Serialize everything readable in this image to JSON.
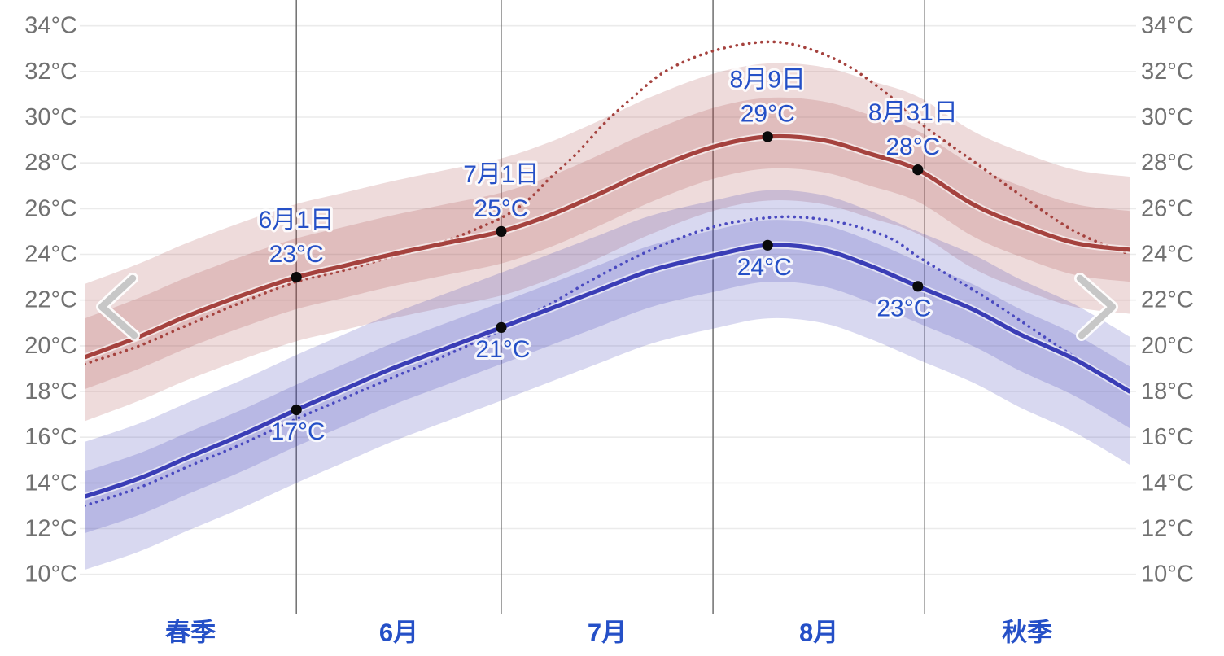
{
  "chart": {
    "background": "#ffffff",
    "nav": {
      "prev_label": "previous period",
      "next_label": "next period"
    }
  },
  "chart_data": {
    "type": "line",
    "title": "",
    "y_axis": {
      "unit": "°C",
      "min": 10,
      "max": 34,
      "step": 2,
      "tick_labels": [
        "34°C",
        "32°C",
        "30°C",
        "28°C",
        "26°C",
        "24°C",
        "22°C",
        "20°C",
        "18°C",
        "16°C",
        "14°C",
        "12°C",
        "10°C"
      ],
      "sides": "both",
      "label_color": "#717171"
    },
    "x_axis": {
      "visible_range_days": 153,
      "month_gridline_days": [
        31,
        61,
        92,
        123
      ],
      "labels": [
        {
          "text": "春季",
          "center_day": 15.5
        },
        {
          "text": "6月",
          "center_day": 46
        },
        {
          "text": "7月",
          "center_day": 76.5
        },
        {
          "text": "8月",
          "center_day": 107.5
        },
        {
          "text": "秋季",
          "center_day": 138
        }
      ],
      "label_color": "#2550c7"
    },
    "grid": {
      "h_color": "#ebebeb",
      "v_color": "#6f6f6f"
    },
    "nav_chevron_color": "#c7c7c7",
    "annotation_color": "#2550c7",
    "point_color": "#0a0a0a",
    "series": [
      {
        "id": "high-temperature-mean",
        "style": "solid",
        "color": "#a5423e",
        "points_day_c": [
          [
            0,
            19.5
          ],
          [
            8,
            20.4
          ],
          [
            15,
            21.3
          ],
          [
            23,
            22.2
          ],
          [
            31,
            23.0
          ],
          [
            38,
            23.5
          ],
          [
            45,
            24.0
          ],
          [
            53,
            24.5
          ],
          [
            61,
            25.0
          ],
          [
            68,
            25.7
          ],
          [
            75,
            26.6
          ],
          [
            83,
            27.7
          ],
          [
            92,
            28.7
          ],
          [
            100,
            29.15
          ],
          [
            108,
            29.0
          ],
          [
            115,
            28.4
          ],
          [
            122,
            27.7
          ],
          [
            130,
            26.2
          ],
          [
            137,
            25.3
          ],
          [
            145,
            24.5
          ],
          [
            153,
            24.2
          ]
        ]
      },
      {
        "id": "high-temperature-perceived",
        "style": "dotted",
        "color": "#a5423e",
        "points_day_c": [
          [
            0,
            19.2
          ],
          [
            8,
            20.0
          ],
          [
            15,
            20.9
          ],
          [
            23,
            21.9
          ],
          [
            31,
            22.8
          ],
          [
            38,
            23.3
          ],
          [
            45,
            23.9
          ],
          [
            53,
            24.6
          ],
          [
            61,
            25.6
          ],
          [
            65,
            26.4
          ],
          [
            68,
            27.3
          ],
          [
            72,
            28.4
          ],
          [
            76,
            29.7
          ],
          [
            80,
            30.8
          ],
          [
            85,
            32.0
          ],
          [
            92,
            32.9
          ],
          [
            100,
            33.3
          ],
          [
            106,
            33.0
          ],
          [
            112,
            32.2
          ],
          [
            118,
            30.9
          ],
          [
            123,
            29.6
          ],
          [
            130,
            28.1
          ],
          [
            137,
            26.6
          ],
          [
            145,
            25.0
          ],
          [
            153,
            24.0
          ]
        ]
      },
      {
        "id": "low-temperature-mean",
        "style": "solid",
        "color": "#3a3db6",
        "points_day_c": [
          [
            0,
            13.4
          ],
          [
            8,
            14.2
          ],
          [
            15,
            15.1
          ],
          [
            23,
            16.1
          ],
          [
            31,
            17.2
          ],
          [
            38,
            18.1
          ],
          [
            45,
            19.0
          ],
          [
            53,
            19.9
          ],
          [
            61,
            20.8
          ],
          [
            68,
            21.6
          ],
          [
            75,
            22.4
          ],
          [
            83,
            23.3
          ],
          [
            92,
            23.95
          ],
          [
            100,
            24.4
          ],
          [
            108,
            24.2
          ],
          [
            115,
            23.5
          ],
          [
            122,
            22.6
          ],
          [
            130,
            21.6
          ],
          [
            137,
            20.5
          ],
          [
            145,
            19.4
          ],
          [
            153,
            18.0
          ]
        ]
      },
      {
        "id": "low-temperature-perceived",
        "style": "dotted",
        "color": "#4a4ac0",
        "points_day_c": [
          [
            0,
            13.0
          ],
          [
            8,
            13.8
          ],
          [
            15,
            14.7
          ],
          [
            23,
            15.7
          ],
          [
            31,
            16.8
          ],
          [
            38,
            17.7
          ],
          [
            45,
            18.6
          ],
          [
            53,
            19.6
          ],
          [
            61,
            20.7
          ],
          [
            68,
            21.8
          ],
          [
            75,
            23.0
          ],
          [
            83,
            24.2
          ],
          [
            92,
            25.2
          ],
          [
            100,
            25.6
          ],
          [
            106,
            25.6
          ],
          [
            112,
            25.3
          ],
          [
            118,
            24.7
          ],
          [
            122,
            23.9
          ],
          [
            127,
            23.0
          ],
          [
            132,
            22.1
          ],
          [
            137,
            21.1
          ],
          [
            145,
            19.5
          ],
          [
            153,
            18.0
          ]
        ]
      }
    ],
    "bands": [
      {
        "base": "high-temperature-mean",
        "color": "#a5423e",
        "alpha": 0.19,
        "inner_offset_c": [
          1.7,
          -1.4
        ],
        "outer_offset_c": [
          3.2,
          -2.8
        ]
      },
      {
        "base": "low-temperature-mean",
        "color": "#3a3db6",
        "alpha": 0.2,
        "inner_offset_c": [
          1.1,
          -1.6
        ],
        "outer_offset_c": [
          2.4,
          -3.2
        ]
      }
    ],
    "annotations": [
      {
        "lines": [
          "6月1日",
          "23°C"
        ],
        "day": 31,
        "temp_c": 23.0,
        "placement": "above",
        "dx": 0,
        "series": "high-temperature-mean"
      },
      {
        "lines": [
          "7月1日",
          "25°C"
        ],
        "day": 61,
        "temp_c": 25.0,
        "placement": "above",
        "dx": 0,
        "series": "high-temperature-mean"
      },
      {
        "lines": [
          "8月9日",
          "29°C"
        ],
        "day": 100,
        "temp_c": 29.15,
        "placement": "above",
        "dx": 0,
        "series": "high-temperature-mean"
      },
      {
        "lines": [
          "8月31日",
          "28°C"
        ],
        "day": 122,
        "temp_c": 27.7,
        "placement": "above",
        "dx": -6,
        "series": "high-temperature-mean"
      },
      {
        "lines": [
          "17°C"
        ],
        "day": 31,
        "temp_c": 17.2,
        "placement": "below",
        "dx": 2,
        "series": "low-temperature-mean"
      },
      {
        "lines": [
          "21°C"
        ],
        "day": 61,
        "temp_c": 20.8,
        "placement": "below",
        "dx": 2,
        "series": "low-temperature-mean"
      },
      {
        "lines": [
          "24°C"
        ],
        "day": 100,
        "temp_c": 24.4,
        "placement": "below",
        "dx": -4,
        "series": "low-temperature-mean"
      },
      {
        "lines": [
          "23°C"
        ],
        "day": 122,
        "temp_c": 22.6,
        "placement": "below",
        "dx": -17,
        "series": "low-temperature-mean"
      }
    ]
  }
}
